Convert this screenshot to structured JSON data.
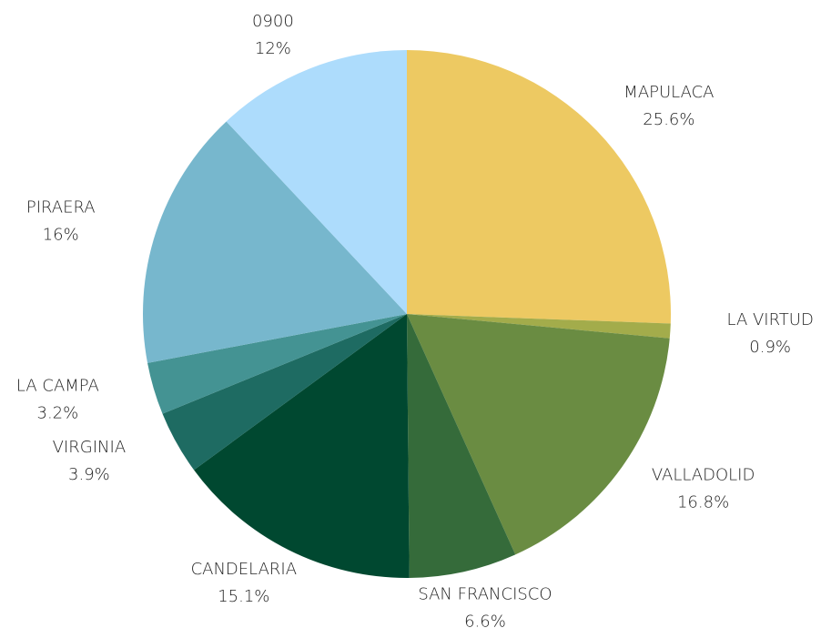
{
  "chart_data": {
    "type": "pie",
    "categories": [
      "MAPULACA",
      "LA VIRTUD",
      "VALLADOLID",
      "SAN FRANCISCO",
      "CANDELARIA",
      "VIRGINIA",
      "LA CAMPA",
      "PIRAERA",
      "0900"
    ],
    "values": [
      25.6,
      0.9,
      16.8,
      6.6,
      15.1,
      3.9,
      3.2,
      16,
      12
    ],
    "value_labels": [
      "25.6%",
      "0.9%",
      "16.8%",
      "6.6%",
      "15.1%",
      "3.9%",
      "3.2%",
      "16%",
      "12%"
    ],
    "colors": [
      "#edc962",
      "#a3ac4b",
      "#6a8c42",
      "#356b3a",
      "#004830",
      "#1e6b62",
      "#449393",
      "#77b7cd",
      "#addcfc"
    ]
  }
}
